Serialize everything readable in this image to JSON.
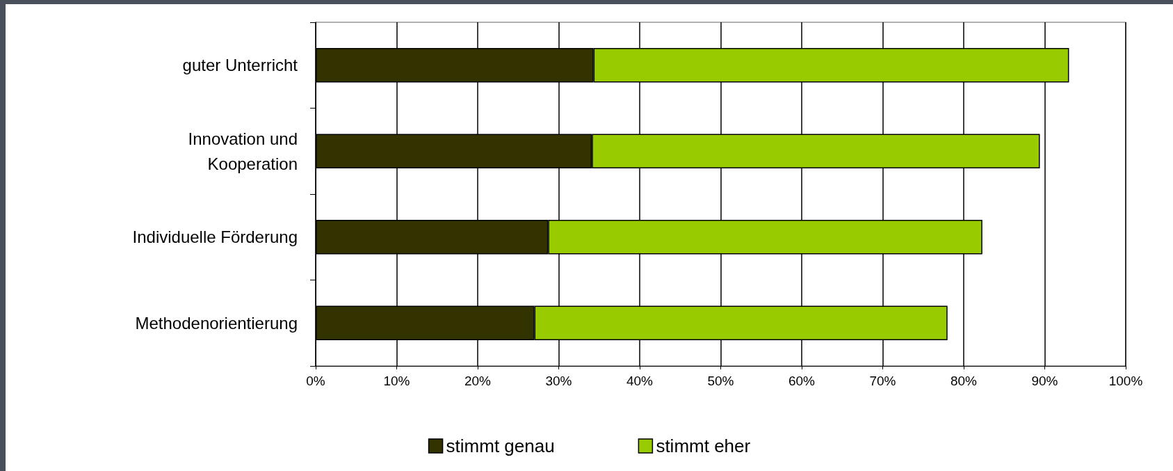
{
  "chart_data": {
    "type": "bar",
    "orientation": "horizontal",
    "stacked": true,
    "categories": [
      "guter Unterricht",
      "Innovation und\nKooperation",
      "Individuelle Förderung",
      "Methodenorientierung"
    ],
    "series": [
      {
        "name": "stimmt genau",
        "color": "#333300",
        "values": [
          34.3,
          34.1,
          28.7,
          27.0
        ]
      },
      {
        "name": "stimmt eher",
        "color": "#99cc00",
        "values": [
          58.7,
          55.3,
          53.6,
          51.0
        ]
      }
    ],
    "xlim": [
      0,
      100
    ],
    "xticks": [
      {
        "value": 0,
        "label": "0%"
      },
      {
        "value": 10,
        "label": "10%"
      },
      {
        "value": 20,
        "label": "20%"
      },
      {
        "value": 30,
        "label": "30%"
      },
      {
        "value": 40,
        "label": "40%"
      },
      {
        "value": 50,
        "label": "50%"
      },
      {
        "value": 60,
        "label": "60%"
      },
      {
        "value": 70,
        "label": "70%"
      },
      {
        "value": 80,
        "label": "80%"
      },
      {
        "value": 90,
        "label": "90%"
      },
      {
        "value": 100,
        "label": "100%"
      }
    ],
    "grid": "x",
    "legend": "bottom"
  }
}
